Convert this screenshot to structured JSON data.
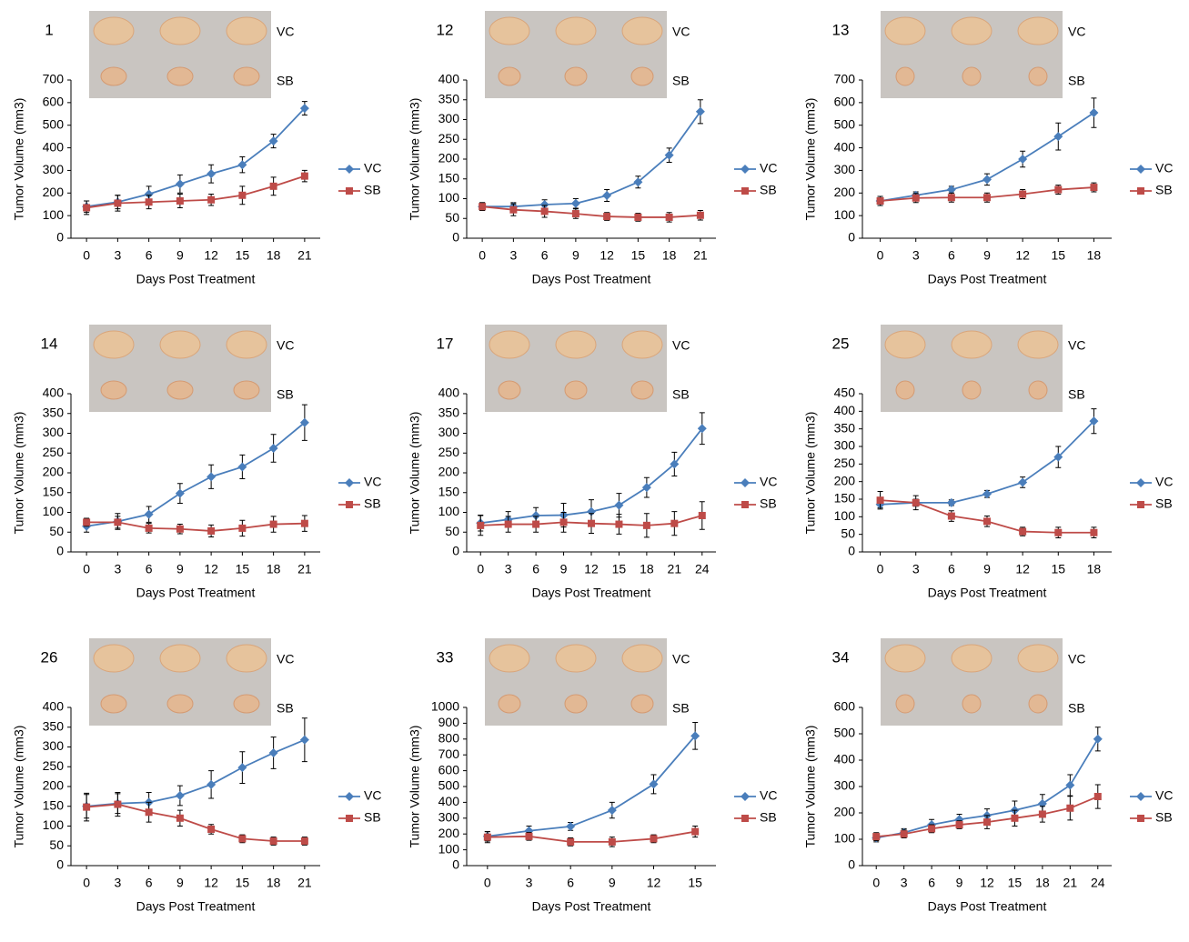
{
  "chart_data": [
    {
      "type": "line",
      "title": "1",
      "x_label": "Days Post Treatment",
      "y_label": "Tumor Volume (mm3)",
      "x": [
        0,
        3,
        6,
        9,
        12,
        15,
        18,
        21
      ],
      "xlim": [
        -1.5,
        22.5
      ],
      "xticks": [
        0,
        3,
        6,
        9,
        12,
        15,
        18,
        21
      ],
      "ylim": [
        0,
        700
      ],
      "yticks": [
        0,
        100,
        200,
        300,
        400,
        500,
        600,
        700
      ],
      "series": [
        {
          "name": "VC",
          "color": "#4a7ebb",
          "values": [
            140,
            160,
            195,
            240,
            285,
            325,
            430,
            575
          ],
          "errors": [
            25,
            30,
            35,
            40,
            40,
            35,
            30,
            30
          ]
        },
        {
          "name": "SB",
          "color": "#be4b48",
          "values": [
            135,
            155,
            160,
            165,
            170,
            190,
            230,
            275
          ],
          "errors": [
            30,
            35,
            30,
            30,
            25,
            40,
            40,
            25
          ]
        }
      ]
    },
    {
      "type": "line",
      "title": "12",
      "x_label": "Days Post Treatment",
      "y_label": "Tumor Volume (mm3)",
      "x": [
        0,
        3,
        6,
        9,
        12,
        15,
        18,
        21
      ],
      "xlim": [
        -1.5,
        22.5
      ],
      "xticks": [
        0,
        3,
        6,
        9,
        12,
        15,
        18,
        21
      ],
      "ylim": [
        0,
        400
      ],
      "yticks": [
        0,
        50,
        100,
        150,
        200,
        250,
        300,
        350,
        400
      ],
      "series": [
        {
          "name": "VC",
          "color": "#4a7ebb",
          "values": [
            80,
            80,
            85,
            88,
            108,
            142,
            210,
            320
          ],
          "errors": [
            10,
            10,
            12,
            12,
            15,
            15,
            18,
            30
          ]
        },
        {
          "name": "SB",
          "color": "#be4b48",
          "values": [
            80,
            72,
            68,
            62,
            55,
            53,
            53,
            58
          ],
          "errors": [
            10,
            15,
            15,
            12,
            10,
            10,
            12,
            12
          ]
        }
      ]
    },
    {
      "type": "line",
      "title": "13",
      "x_label": "Days Post Treatment",
      "y_label": "Tumor Volume (mm3)",
      "x": [
        0,
        3,
        6,
        9,
        12,
        15,
        18
      ],
      "xlim": [
        -1.5,
        19.5
      ],
      "xticks": [
        0,
        3,
        6,
        9,
        12,
        15,
        18
      ],
      "ylim": [
        0,
        700
      ],
      "yticks": [
        0,
        100,
        200,
        300,
        400,
        500,
        600,
        700
      ],
      "series": [
        {
          "name": "VC",
          "color": "#4a7ebb",
          "values": [
            165,
            190,
            215,
            260,
            350,
            450,
            555
          ],
          "errors": [
            20,
            15,
            15,
            25,
            35,
            60,
            65
          ]
        },
        {
          "name": "SB",
          "color": "#be4b48",
          "values": [
            165,
            178,
            180,
            180,
            195,
            215,
            225
          ],
          "errors": [
            20,
            20,
            20,
            20,
            20,
            20,
            20
          ]
        }
      ]
    },
    {
      "type": "line",
      "title": "14",
      "x_label": "Days Post Treatment",
      "y_label": "Tumor Volume (mm3)",
      "x": [
        0,
        3,
        6,
        9,
        12,
        15,
        18,
        21
      ],
      "xlim": [
        -1.5,
        22.5
      ],
      "xticks": [
        0,
        3,
        6,
        9,
        12,
        15,
        18,
        21
      ],
      "ylim": [
        0,
        400
      ],
      "yticks": [
        0,
        50,
        100,
        150,
        200,
        250,
        300,
        350,
        400
      ],
      "series": [
        {
          "name": "VC",
          "color": "#4a7ebb",
          "values": [
            65,
            77,
            95,
            148,
            190,
            215,
            262,
            327
          ],
          "errors": [
            15,
            20,
            20,
            25,
            30,
            30,
            35,
            45
          ]
        },
        {
          "name": "SB",
          "color": "#be4b48",
          "values": [
            75,
            75,
            60,
            58,
            53,
            60,
            70,
            72
          ],
          "errors": [
            10,
            15,
            12,
            12,
            15,
            20,
            20,
            20
          ]
        }
      ]
    },
    {
      "type": "line",
      "title": "17",
      "x_label": "Days Post Treatment",
      "y_label": "Tumor Volume (mm3)",
      "x": [
        0,
        3,
        6,
        9,
        12,
        15,
        18,
        21,
        24
      ],
      "xlim": [
        -1.5,
        25.5
      ],
      "xticks": [
        0,
        3,
        6,
        9,
        12,
        15,
        18,
        21,
        24
      ],
      "ylim": [
        0,
        400
      ],
      "yticks": [
        0,
        50,
        100,
        150,
        200,
        250,
        300,
        350,
        400
      ],
      "series": [
        {
          "name": "VC",
          "color": "#4a7ebb",
          "values": [
            73,
            82,
            92,
            93,
            102,
            118,
            163,
            222,
            312
          ],
          "errors": [
            20,
            20,
            20,
            30,
            30,
            30,
            25,
            30,
            40
          ]
        },
        {
          "name": "SB",
          "color": "#be4b48",
          "values": [
            67,
            70,
            70,
            75,
            72,
            70,
            67,
            72,
            92
          ],
          "errors": [
            25,
            20,
            20,
            25,
            25,
            25,
            30,
            30,
            35
          ]
        }
      ]
    },
    {
      "type": "line",
      "title": "25",
      "x_label": "Days Post Treatment",
      "y_label": "Tumor Volume (mm3)",
      "x": [
        0,
        3,
        6,
        9,
        12,
        15,
        18
      ],
      "xlim": [
        -1.5,
        19.5
      ],
      "xticks": [
        0,
        3,
        6,
        9,
        12,
        15,
        18
      ],
      "ylim": [
        0,
        450
      ],
      "yticks": [
        0,
        50,
        100,
        150,
        200,
        250,
        300,
        350,
        400,
        450
      ],
      "series": [
        {
          "name": "VC",
          "color": "#4a7ebb",
          "values": [
            135,
            140,
            140,
            165,
            198,
            270,
            372
          ],
          "errors": [
            10,
            10,
            8,
            10,
            15,
            30,
            35
          ]
        },
        {
          "name": "SB",
          "color": "#be4b48",
          "values": [
            147,
            140,
            102,
            87,
            58,
            55,
            55
          ],
          "errors": [
            25,
            20,
            15,
            15,
            12,
            15,
            15
          ]
        }
      ]
    },
    {
      "type": "line",
      "title": "26",
      "x_label": "Days Post Treatment",
      "y_label": "Tumor Volume (mm3)",
      "x": [
        0,
        3,
        6,
        9,
        12,
        15,
        18,
        21
      ],
      "xlim": [
        -1.5,
        22.5
      ],
      "xticks": [
        0,
        3,
        6,
        9,
        12,
        15,
        18,
        21
      ],
      "ylim": [
        0,
        400
      ],
      "yticks": [
        0,
        50,
        100,
        150,
        200,
        250,
        300,
        350,
        400
      ],
      "series": [
        {
          "name": "VC",
          "color": "#4a7ebb",
          "values": [
            150,
            157,
            160,
            177,
            205,
            248,
            285,
            318
          ],
          "errors": [
            30,
            25,
            25,
            25,
            35,
            40,
            40,
            55
          ]
        },
        {
          "name": "SB",
          "color": "#be4b48",
          "values": [
            148,
            155,
            135,
            120,
            92,
            68,
            62,
            62
          ],
          "errors": [
            35,
            30,
            25,
            20,
            12,
            10,
            10,
            10
          ]
        }
      ]
    },
    {
      "type": "line",
      "title": "33",
      "x_label": "Days Post Treatment",
      "y_label": "Tumor Volume (mm3)",
      "x": [
        0,
        3,
        6,
        9,
        12,
        15
      ],
      "xlim": [
        -1.5,
        16.5
      ],
      "xticks": [
        0,
        3,
        6,
        9,
        12,
        15
      ],
      "ylim": [
        0,
        1000
      ],
      "yticks": [
        0,
        100,
        200,
        300,
        400,
        500,
        600,
        700,
        800,
        900,
        1000
      ],
      "series": [
        {
          "name": "VC",
          "color": "#4a7ebb",
          "values": [
            185,
            220,
            248,
            350,
            515,
            820
          ],
          "errors": [
            30,
            30,
            25,
            50,
            60,
            85
          ]
        },
        {
          "name": "SB",
          "color": "#be4b48",
          "values": [
            180,
            185,
            150,
            150,
            170,
            215
          ],
          "errors": [
            35,
            25,
            25,
            30,
            25,
            35
          ]
        }
      ]
    },
    {
      "type": "line",
      "title": "34",
      "x_label": "Days Post Treatment",
      "y_label": "Tumor Volume (mm3)",
      "x": [
        0,
        3,
        6,
        9,
        12,
        15,
        18,
        21,
        24
      ],
      "xlim": [
        -1.5,
        25.5
      ],
      "xticks": [
        0,
        3,
        6,
        9,
        12,
        15,
        18,
        21,
        24
      ],
      "ylim": [
        0,
        600
      ],
      "yticks": [
        0,
        100,
        200,
        300,
        400,
        500,
        600
      ],
      "series": [
        {
          "name": "VC",
          "color": "#4a7ebb",
          "values": [
            105,
            125,
            155,
            175,
            190,
            210,
            235,
            305,
            480
          ],
          "errors": [
            15,
            15,
            20,
            20,
            25,
            35,
            35,
            40,
            45
          ]
        },
        {
          "name": "SB",
          "color": "#be4b48",
          "values": [
            110,
            120,
            140,
            155,
            165,
            180,
            195,
            218,
            262
          ],
          "errors": [
            15,
            15,
            15,
            15,
            25,
            30,
            30,
            45,
            45
          ]
        }
      ]
    }
  ]
}
